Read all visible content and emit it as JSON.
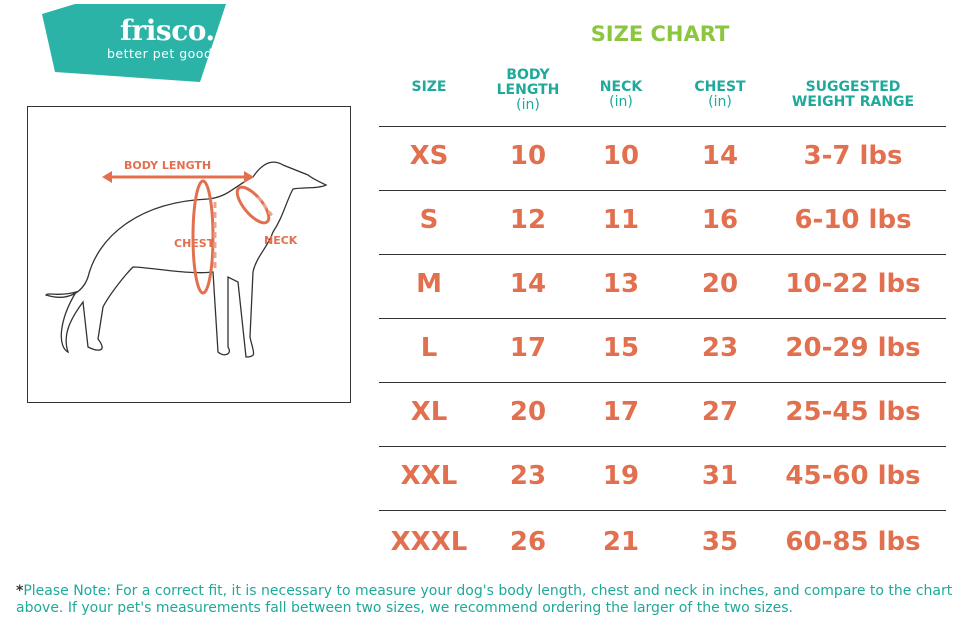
{
  "logo": {
    "brand": "frisco.",
    "tagline": "better pet goods",
    "color": "#2bb3a8"
  },
  "illustration": {
    "body_length": "BODY LENGTH",
    "chest": "CHEST",
    "neck": "NECK"
  },
  "title": "SIZE CHART",
  "colors": {
    "header": "#1ea99a",
    "values": "#e2704f",
    "title": "#8cc63f"
  },
  "headers": [
    {
      "label": "SIZE",
      "unit": ""
    },
    {
      "label": "BODY LENGTH",
      "unit": "(in)"
    },
    {
      "label": "NECK",
      "unit": "(in)"
    },
    {
      "label": "CHEST",
      "unit": "(in)"
    },
    {
      "label": "SUGGESTED WEIGHT RANGE",
      "unit": ""
    }
  ],
  "rows": [
    [
      "XS",
      "10",
      "10",
      "14",
      "3-7 lbs"
    ],
    [
      "S",
      "12",
      "11",
      "16",
      "6-10 lbs"
    ],
    [
      "M",
      "14",
      "13",
      "20",
      "10-22 lbs"
    ],
    [
      "L",
      "17",
      "15",
      "23",
      "20-29 lbs"
    ],
    [
      "XL",
      "20",
      "17",
      "27",
      "25-45 lbs"
    ],
    [
      "XXL",
      "23",
      "19",
      "31",
      "45-60 lbs"
    ],
    [
      "XXXL",
      "26",
      "21",
      "35",
      "60-85 lbs"
    ]
  ],
  "note": {
    "asterisk": "*",
    "text": "Please Note: For a correct fit, it is necessary to measure your dog's body length, chest and neck in inches, and compare to the chart above. If your pet's measurements fall between two sizes, we recommend ordering the larger of the two sizes."
  }
}
